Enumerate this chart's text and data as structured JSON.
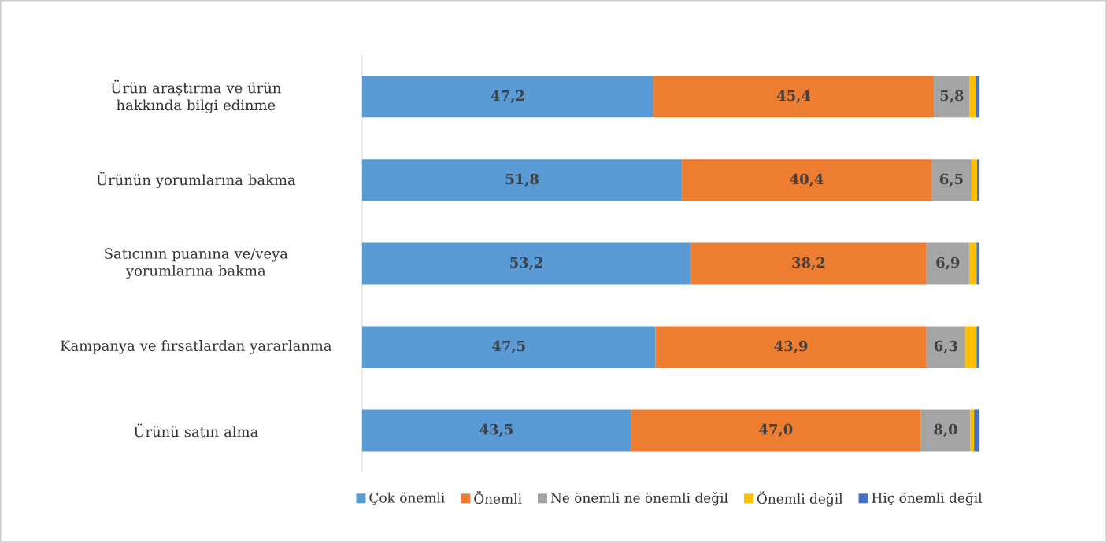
{
  "chart_data": {
    "type": "bar",
    "orientation": "horizontal",
    "stacked": true,
    "categories": [
      "Ürün araştırma ve ürün hakkında bilgi edinme",
      "Ürünün yorumlarına bakma",
      "Satıcının puanına ve/veya yorumlarına bakma",
      "Kampanya ve fırsatlardan yararlanma",
      "Ürünü satın alma"
    ],
    "series": [
      {
        "name": "Çok önemli",
        "color": "#5b9bd5",
        "values": [
          47.2,
          51.8,
          53.2,
          47.5,
          43.5
        ],
        "value_labels": [
          "47,2",
          "51,8",
          "53,2",
          "47,5",
          "43,5"
        ]
      },
      {
        "name": "Önemli",
        "color": "#ed7d31",
        "values": [
          45.4,
          40.4,
          38.2,
          43.9,
          47.0
        ],
        "value_labels": [
          "45,4",
          "40,4",
          "38,2",
          "43,9",
          "47,0"
        ]
      },
      {
        "name": "Ne önemli ne önemli değil",
        "color": "#a5a5a5",
        "values": [
          5.8,
          6.5,
          6.9,
          6.3,
          8.0
        ],
        "value_labels": [
          "5,8",
          "6,5",
          "6,9",
          "6,3",
          "8,0"
        ]
      },
      {
        "name": "Önemli değil",
        "color": "#ffc000",
        "values": [
          1.0,
          0.9,
          1.2,
          1.8,
          0.6
        ]
      },
      {
        "name": "Hiç önemli değil",
        "color": "#4472c4",
        "values": [
          0.6,
          0.4,
          0.5,
          0.5,
          0.9
        ]
      }
    ],
    "xlim": [
      0,
      100
    ],
    "legend": "bottom"
  }
}
